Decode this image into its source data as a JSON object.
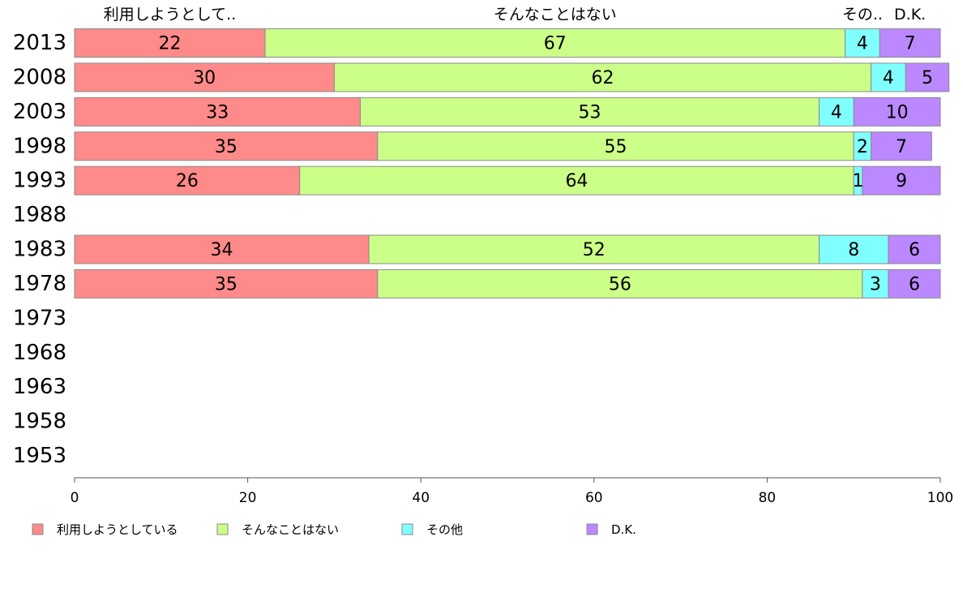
{
  "chart_data": {
    "type": "bar",
    "orientation": "horizontal",
    "stacked": true,
    "categories": [
      "2013",
      "2008",
      "2003",
      "1998",
      "1993",
      "1988",
      "1983",
      "1978",
      "1973",
      "1968",
      "1963",
      "1958",
      "1953"
    ],
    "series": [
      {
        "name": "利用しようとしている",
        "short": "利用しようとして..",
        "color": "#ff8a8a",
        "values": [
          22,
          30,
          33,
          35,
          26,
          null,
          34,
          35,
          null,
          null,
          null,
          null,
          null
        ]
      },
      {
        "name": "そんなことはない",
        "short": "そんなことはない",
        "color": "#ccff88",
        "values": [
          67,
          62,
          53,
          55,
          64,
          null,
          52,
          56,
          null,
          null,
          null,
          null,
          null
        ]
      },
      {
        "name": "その他",
        "short": "その..",
        "color": "#80ffff",
        "values": [
          4,
          4,
          4,
          2,
          1,
          null,
          8,
          3,
          null,
          null,
          null,
          null,
          null
        ]
      },
      {
        "name": "D.K.",
        "short": "D.K.",
        "color": "#bb88ff",
        "values": [
          7,
          5,
          10,
          7,
          9,
          null,
          6,
          6,
          null,
          null,
          null,
          null,
          null
        ]
      }
    ],
    "xlim": [
      0,
      100
    ],
    "xticks": [
      0,
      20,
      40,
      60,
      80,
      100
    ],
    "grid": false,
    "legend": "bottom"
  }
}
